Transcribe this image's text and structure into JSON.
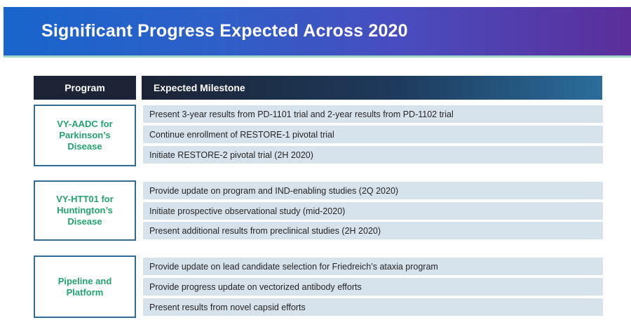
{
  "title": "Significant Progress Expected Across 2020",
  "table": {
    "header": {
      "program": "Program",
      "milestone": "Expected Milestone"
    },
    "groups": [
      {
        "program": "VY-AADC for Parkinson’s Disease",
        "milestones": [
          "Present 3-year results from PD-1101 trial and 2-year results from PD-1102 trial",
          "Continue enrollment of RESTORE-1 pivotal trial",
          "Initiate RESTORE-2 pivotal trial (2H 2020)"
        ]
      },
      {
        "program": "VY-HTT01 for Huntington’s Disease",
        "milestones": [
          "Provide update on program and IND-enabling studies (2Q 2020)",
          "Initiate prospective observational study (mid-2020)",
          "Present additional results from preclinical studies (2H 2020)"
        ]
      },
      {
        "program": "Pipeline and Platform",
        "milestones": [
          "Provide update on lead candidate selection for Friedreich’s ataxia program",
          "Provide progress update on vectorized antibody efforts",
          "Present results from novel capsid efforts"
        ]
      }
    ]
  }
}
